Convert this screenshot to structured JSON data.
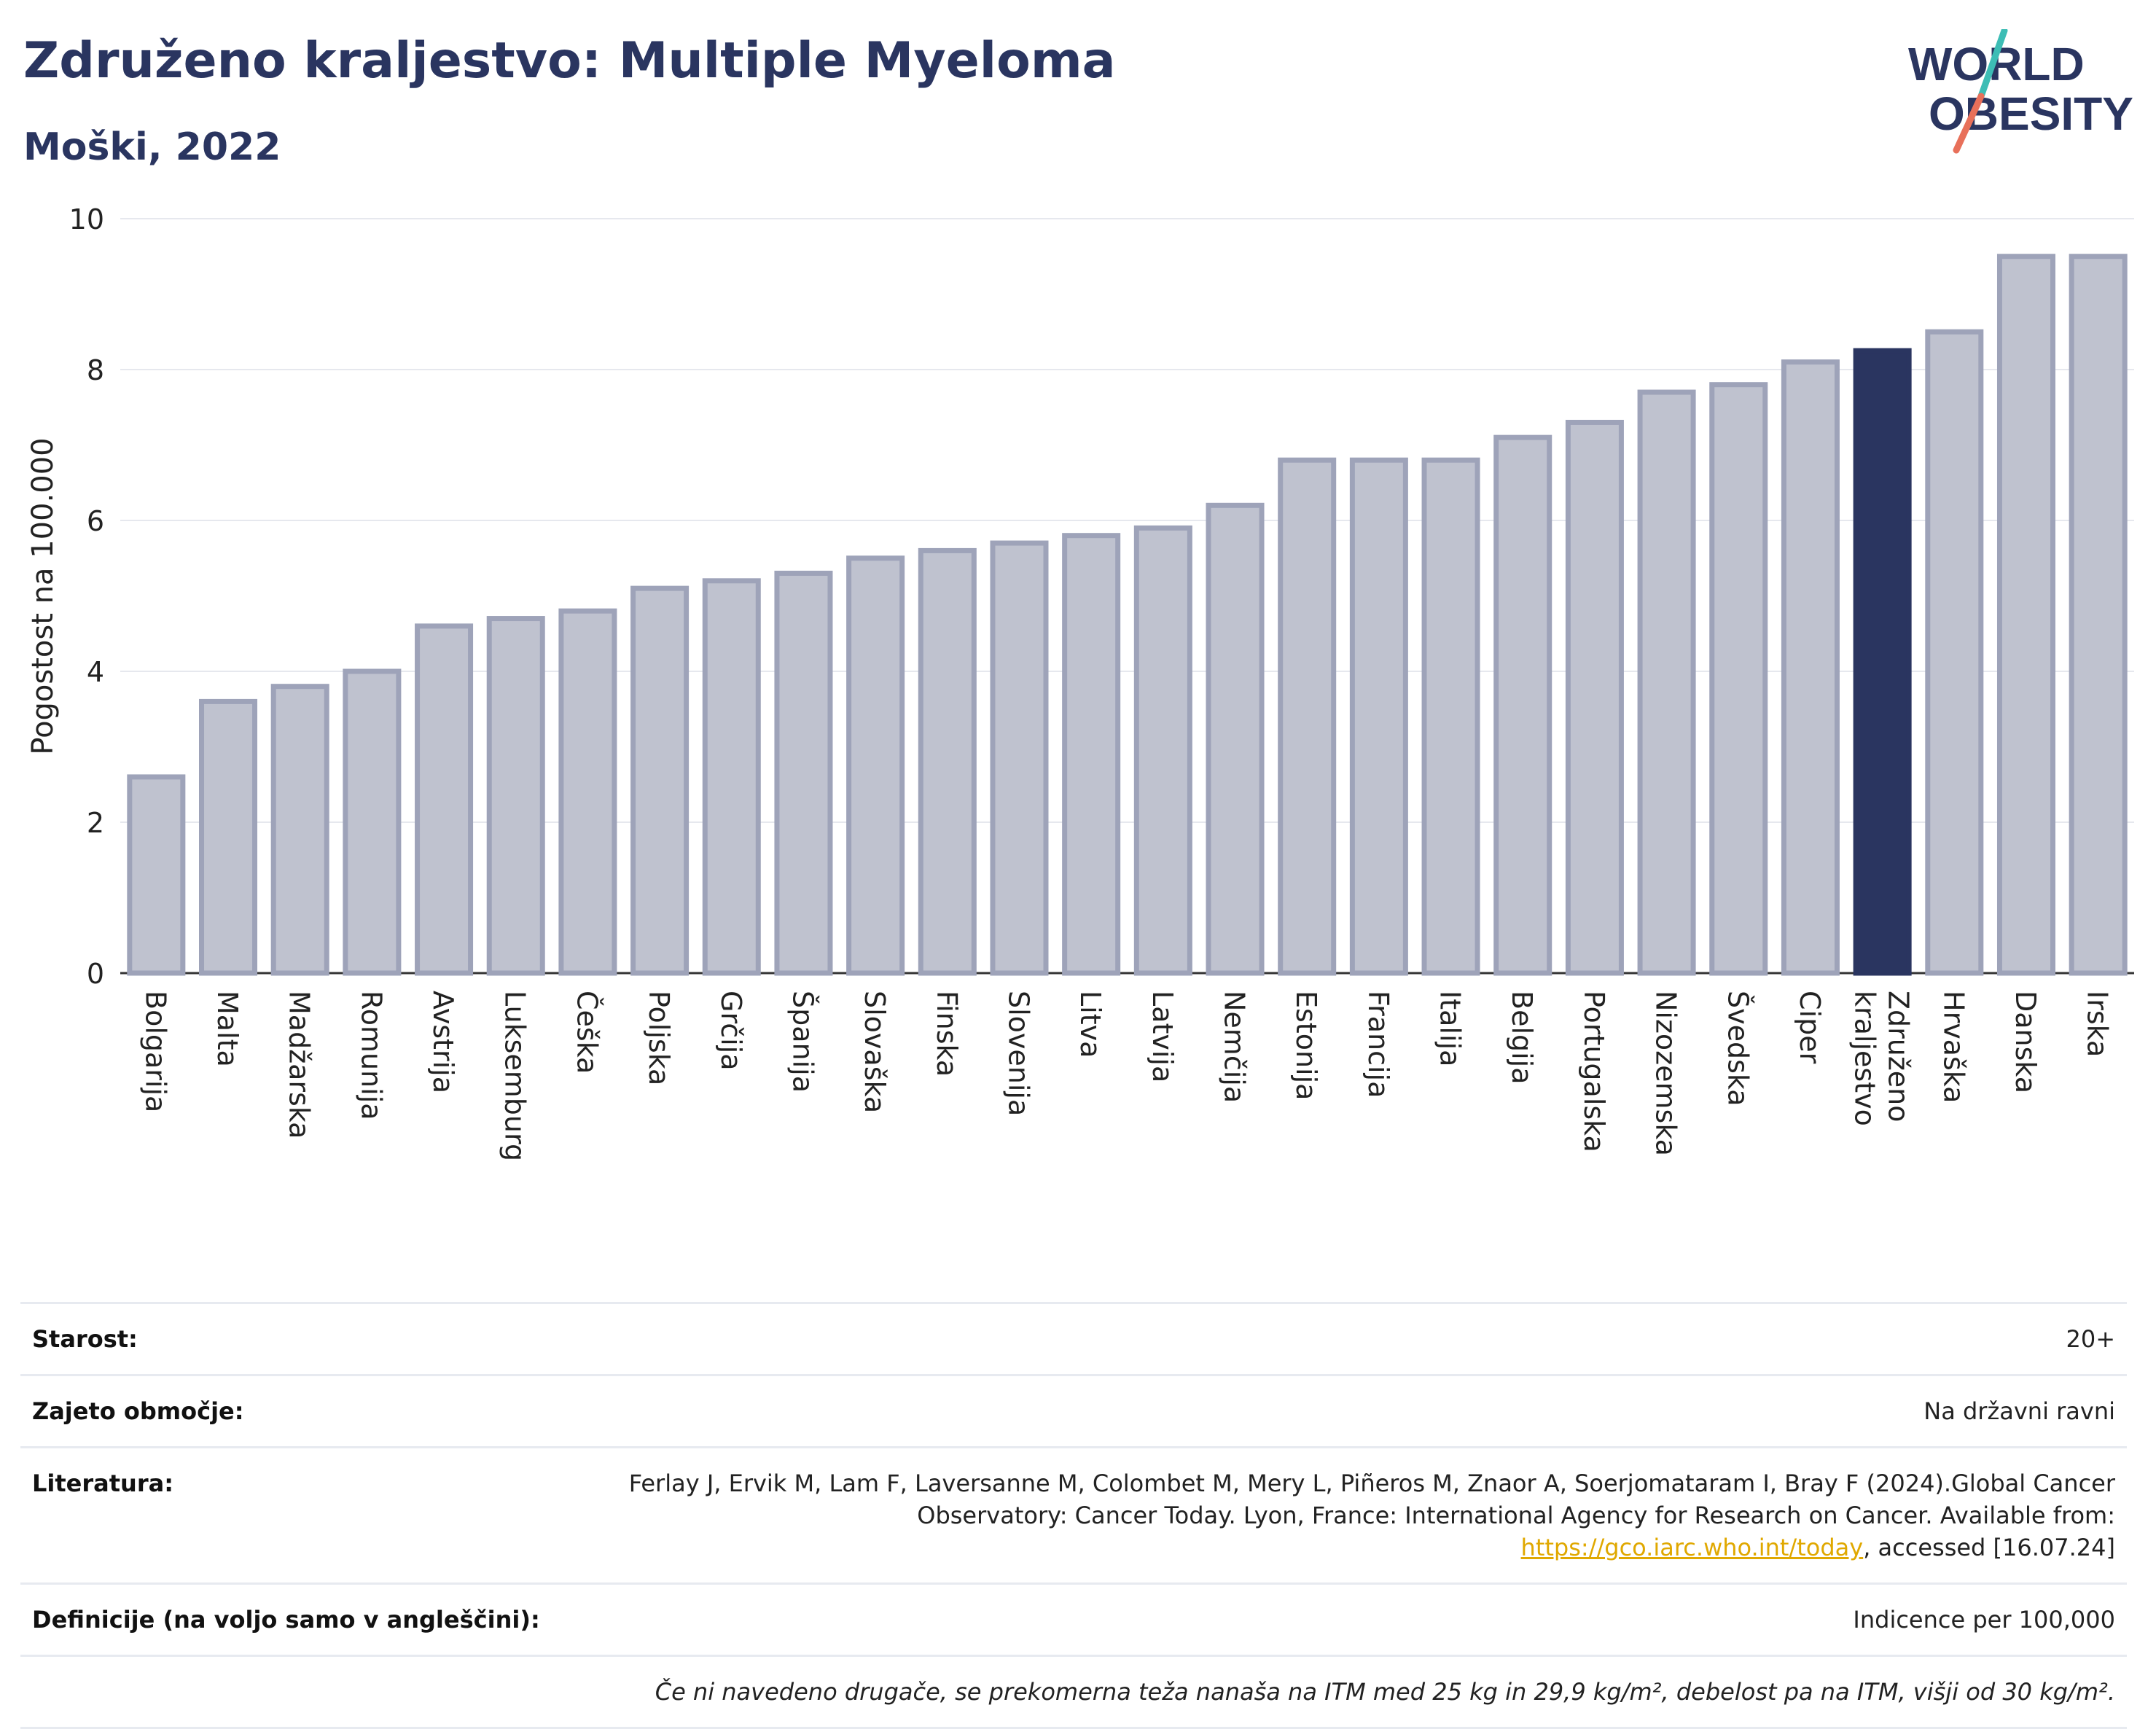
{
  "header": {
    "title": "Združeno kraljestvo: Multiple Myeloma",
    "subtitle": "Moški, 2022",
    "logo_line1": "WORLD",
    "logo_line2": "OBESITY"
  },
  "colors": {
    "bar": "#bfc2cf",
    "bar_stroke": "#9ea3b9",
    "highlight": "#2a3560",
    "grid": "#e6e8ee",
    "logo_text": "#2a3560",
    "logo_slash_top": "#3dbdb5",
    "logo_slash_bottom": "#e8705a"
  },
  "chart_data": {
    "type": "bar",
    "ylabel": "Pogostost na 100.000",
    "ylim": [
      0,
      10
    ],
    "yticks": [
      0,
      2,
      4,
      6,
      8,
      10
    ],
    "grid": true,
    "highlight": "Združeno kraljestvo",
    "categories": [
      "Bolgarija",
      "Malta",
      "Madžarska",
      "Romunija",
      "Avstrija",
      "Luksemburg",
      "Češka",
      "Poljska",
      "Grčija",
      "Španija",
      "Slovaška",
      "Finska",
      "Slovenija",
      "Litva",
      "Latvija",
      "Nemčija",
      "Estonija",
      "Francija",
      "Italija",
      "Belgija",
      "Portugalska",
      "Nizozemska",
      "Švedska",
      "Ciper",
      "Združeno kraljestvo",
      "Hrvaška",
      "Danska",
      "Irska"
    ],
    "values": [
      2.6,
      3.6,
      3.8,
      4.0,
      4.6,
      4.7,
      4.8,
      5.1,
      5.2,
      5.3,
      5.5,
      5.6,
      5.7,
      5.8,
      5.9,
      6.2,
      6.8,
      6.8,
      6.8,
      7.1,
      7.3,
      7.7,
      7.8,
      8.1,
      8.25,
      8.5,
      9.5,
      9.5
    ]
  },
  "info": {
    "age_label": "Starost:",
    "age_value": "20+",
    "area_label": "Zajeto območje:",
    "area_value": "Na državni ravni",
    "ref_label": "Literatura:",
    "ref_text_1": "Ferlay J, Ervik M, Lam F, Laversanne M, Colombet M, Mery L, Piñeros M, Znaor A, Soerjomataram I, Bray F (2024).Global Cancer Observatory: Cancer Today. Lyon, France: International Agency for Research on Cancer. Available from: ",
    "ref_link": "https://gco.iarc.who.int/today",
    "ref_text_2": ", accessed [16.07.24]",
    "def_label": "Definicije (na voljo samo v angleščini):",
    "def_value": "Indicence per 100,000",
    "note": "Če ni navedeno drugače, se prekomerna teža nanaša na ITM med 25 kg in 29,9 kg/m², debelost pa na ITM, višji od 30 kg/m²."
  }
}
